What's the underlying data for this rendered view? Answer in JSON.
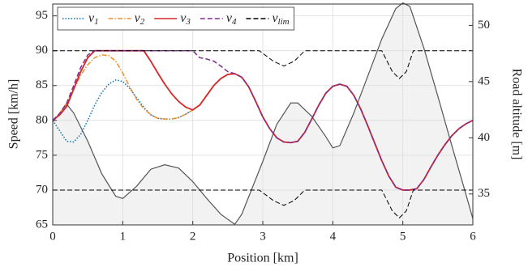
{
  "chart_data": {
    "type": "line",
    "xlabel": "Position [km]",
    "ylabel": "Speed [km/h]",
    "y2label": "Road altitude [m]",
    "xlim": [
      0,
      6
    ],
    "xticks": [
      0,
      1,
      2,
      3,
      4,
      5,
      6
    ],
    "ylim": [
      65,
      96.7
    ],
    "yticks": [
      65,
      70,
      75,
      80,
      85,
      90,
      95
    ],
    "y2lim": [
      32.25,
      51.9
    ],
    "y2ticks": [
      35,
      40,
      45,
      50
    ],
    "grid": true,
    "legend": "top-left",
    "x": [
      0,
      0.1,
      0.2,
      0.3,
      0.4,
      0.5,
      0.6,
      0.7,
      0.8,
      0.9,
      1,
      1.1,
      1.2,
      1.3,
      1.4,
      1.5,
      1.6,
      1.7,
      1.8,
      1.9,
      2,
      2.1,
      2.2,
      2.3,
      2.4,
      2.5,
      2.6,
      2.7,
      2.8,
      2.9,
      3,
      3.1,
      3.2,
      3.3,
      3.4,
      3.5,
      3.6,
      3.7,
      3.8,
      3.9,
      4,
      4.1,
      4.2,
      4.3,
      4.4,
      4.5,
      4.6,
      4.7,
      4.8,
      4.9,
      5,
      5.1,
      5.2,
      5.3,
      5.4,
      5.5,
      5.6,
      5.7,
      5.8,
      5.9,
      6
    ],
    "series": [
      {
        "name": "v1",
        "color": "#0072bd",
        "style": "dotted",
        "values": [
          80,
          78.5,
          77,
          76.9,
          78,
          80,
          82.2,
          84,
          85.2,
          85.8,
          85.6,
          84.6,
          83.2,
          81.9,
          80.8,
          80.3,
          80.2,
          80.2,
          80.4,
          80.9,
          81.5,
          82.2,
          83.6,
          85,
          86,
          86.6,
          86.7,
          86.2,
          84.8,
          82.7,
          80.5,
          78.8,
          77.5,
          76.9,
          76.8,
          77,
          78.3,
          80.2,
          82.2,
          83.9,
          84.9,
          85.2,
          84.9,
          83.6,
          81.6,
          79.2,
          76.7,
          74.2,
          72,
          70.4,
          70,
          70,
          70.2,
          71.5,
          73.3,
          75,
          76.5,
          77.8,
          78.8,
          79.5,
          80
        ]
      },
      {
        "name": "v2",
        "color": "#f28e2b",
        "style": "dashdot",
        "values": [
          80,
          81,
          82.5,
          84.5,
          86.5,
          88,
          89,
          89.4,
          89.3,
          88.5,
          86.8,
          84.8,
          83,
          81.7,
          80.8,
          80.3,
          80.2,
          80.2,
          80.4,
          80.9,
          81.5,
          82.2,
          83.6,
          85,
          86,
          86.6,
          86.7,
          86.2,
          84.8,
          82.7,
          80.5,
          78.8,
          77.5,
          76.9,
          76.8,
          77,
          78.3,
          80.2,
          82.2,
          83.9,
          84.9,
          85.2,
          84.9,
          83.6,
          81.6,
          79.2,
          76.7,
          74.2,
          72,
          70.4,
          70,
          70,
          70.2,
          71.5,
          73.3,
          75,
          76.5,
          77.8,
          78.8,
          79.5,
          80
        ]
      },
      {
        "name": "v3",
        "color": "#d62728",
        "style": "solid",
        "values": [
          80,
          80.8,
          82,
          84.5,
          87,
          89,
          90,
          90,
          90,
          90,
          90,
          90,
          90,
          90,
          88.5,
          86.8,
          85.2,
          83.8,
          82.7,
          81.9,
          81.5,
          82.2,
          83.6,
          85,
          86,
          86.6,
          86.7,
          86.2,
          84.8,
          82.7,
          80.5,
          78.8,
          77.5,
          76.9,
          76.8,
          77,
          78.3,
          80.2,
          82.2,
          83.9,
          84.9,
          85.2,
          84.9,
          83.6,
          81.6,
          79.2,
          76.7,
          74.2,
          72,
          70.4,
          70,
          70,
          70.2,
          71.5,
          73.3,
          75,
          76.5,
          77.8,
          78.8,
          79.5,
          80
        ]
      },
      {
        "name": "v4",
        "color": "#7e2f8e",
        "style": "dashed",
        "values": [
          80,
          81,
          82.5,
          85,
          87.6,
          89.4,
          90,
          90,
          90,
          90,
          90,
          90,
          90,
          90,
          90,
          90,
          90,
          90,
          90,
          90,
          90,
          89,
          88.8,
          88.5,
          87.8,
          87,
          86.7,
          86.2,
          84.8,
          82.7,
          80.5,
          78.8,
          77.5,
          76.9,
          76.8,
          77,
          78.3,
          80.2,
          82.2,
          83.9,
          84.9,
          85.2,
          84.9,
          83.6,
          81.6,
          79.2,
          76.7,
          74.2,
          72,
          70.4,
          70,
          70,
          70.2,
          71.5,
          73.3,
          75,
          76.5,
          77.8,
          78.8,
          79.5,
          80
        ]
      },
      {
        "name": "vlim",
        "color": "#000000",
        "style": "dashed",
        "x": [
          0,
          2.95,
          3.15,
          3.3,
          3.45,
          3.6,
          4.7,
          4.85,
          4.95,
          5.05,
          5.15,
          6
        ],
        "values": [
          90,
          90,
          88.5,
          87.8,
          88.5,
          90,
          90,
          87,
          86,
          87,
          90,
          90
        ],
        "values_low": [
          70,
          70,
          68.5,
          67.8,
          68.5,
          70,
          70,
          67,
          66,
          67,
          70,
          70
        ]
      }
    ],
    "altitude": {
      "axis": "y2",
      "color": "#555555",
      "fill": "#f2f2f2",
      "x": [
        0,
        0.2,
        0.3,
        0.5,
        0.7,
        0.9,
        1,
        1.2,
        1.4,
        1.6,
        1.8,
        2,
        2.2,
        2.4,
        2.6,
        2.7,
        3,
        3.2,
        3.4,
        3.5,
        3.7,
        3.9,
        4,
        4.1,
        4.3,
        4.5,
        4.7,
        4.9,
        5,
        5.1,
        5.3,
        5.5,
        5.7,
        5.9,
        6
      ],
      "values": [
        41.4,
        43,
        42.2,
        39.7,
        36.8,
        34.8,
        34.6,
        35.7,
        37.2,
        37.6,
        37.3,
        36.1,
        34.6,
        33.2,
        32.3,
        33.2,
        37.9,
        41.2,
        43.1,
        43.1,
        41.9,
        40.1,
        39.1,
        39.3,
        42.2,
        45.5,
        48.8,
        51.5,
        52,
        51.7,
        48,
        43.7,
        39.3,
        35,
        32.8
      ]
    }
  }
}
